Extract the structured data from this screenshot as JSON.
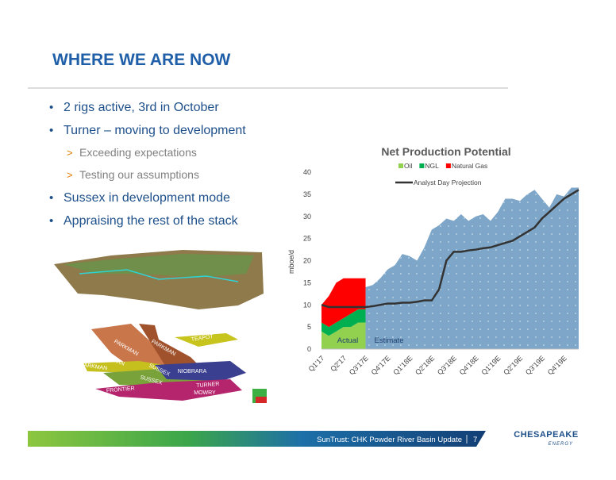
{
  "header": {
    "title": "WHERE WE ARE NOW"
  },
  "bullets": [
    {
      "text": "2 rigs active, 3rd in October"
    },
    {
      "text": "Turner – moving to development",
      "sub": [
        "Exceeding expectations",
        "Testing our assumptions"
      ]
    },
    {
      "text": "Sussex in development mode"
    },
    {
      "text": "Appraising the rest of the stack"
    }
  ],
  "map": {
    "labels": [
      "TEAPOT",
      "PARKMAN",
      "PARKMAN",
      "PARKMAN",
      "PARKMAN",
      "SUSSEX",
      "SUSSEX",
      "NIOBRARA",
      "TURNER",
      "MOWRY",
      "FRONTIER"
    ]
  },
  "chart_data": {
    "type": "area",
    "title": "Net Production Potential",
    "y_label": "mboe/d",
    "categories": [
      "Q1'17",
      null,
      null,
      "Q2'17",
      null,
      null,
      "Q3'17E",
      null,
      null,
      "Q4'17E",
      null,
      null,
      "Q1'18E",
      null,
      null,
      "Q2'18E",
      null,
      null,
      "Q3'18E",
      null,
      null,
      "Q4'18E",
      null,
      null,
      "Q1'19E",
      null,
      null,
      "Q2'19E",
      null,
      null,
      "Q3'19E",
      null,
      null,
      "Q4'19E",
      null,
      null
    ],
    "series": [
      {
        "name": "Oil",
        "color": "#92d050",
        "kind": "area",
        "stack": true,
        "values": [
          4,
          3,
          4,
          5,
          5,
          6,
          6,
          null,
          null,
          null,
          null,
          null,
          null,
          null,
          null,
          null,
          null,
          null,
          null,
          null,
          null,
          null,
          null,
          null,
          null,
          null,
          null,
          null,
          null,
          null,
          null,
          null,
          null,
          null,
          null,
          null
        ]
      },
      {
        "name": "NGL",
        "color": "#00b050",
        "kind": "area",
        "stack": true,
        "values": [
          2,
          2,
          2,
          2,
          3,
          3,
          3,
          null,
          null,
          null,
          null,
          null,
          null,
          null,
          null,
          null,
          null,
          null,
          null,
          null,
          null,
          null,
          null,
          null,
          null,
          null,
          null,
          null,
          null,
          null,
          null,
          null,
          null,
          null,
          null,
          null
        ]
      },
      {
        "name": "Natural Gas",
        "color": "#ff0000",
        "kind": "area",
        "stack": true,
        "values": [
          4,
          7,
          9,
          9,
          8,
          7,
          7,
          null,
          null,
          null,
          null,
          null,
          null,
          null,
          null,
          null,
          null,
          null,
          null,
          null,
          null,
          null,
          null,
          null,
          null,
          null,
          null,
          null,
          null,
          null,
          null,
          null,
          null,
          null,
          null,
          null
        ]
      },
      {
        "color": "#7ea6c8",
        "kind": "area",
        "values": [
          null,
          null,
          null,
          null,
          null,
          null,
          14,
          14.5,
          16,
          18,
          19,
          21.5,
          21,
          20,
          23,
          27,
          28,
          29.5,
          29,
          30.5,
          29,
          30,
          30.5,
          29,
          31,
          34,
          34,
          33.5,
          35,
          36,
          34,
          32,
          35,
          34.5,
          36.5,
          36.5
        ]
      },
      {
        "name": "Analyst Day Projection",
        "color": "#333333",
        "kind": "line",
        "values": [
          10,
          9.5,
          9.5,
          9.5,
          9.5,
          9.5,
          9.5,
          9.7,
          10,
          10.3,
          10.3,
          10.5,
          10.5,
          10.7,
          11,
          11,
          13.5,
          20,
          22,
          22,
          22.3,
          22.5,
          22.8,
          23,
          23.5,
          24,
          24.5,
          25.5,
          26.5,
          27.5,
          29.5,
          31,
          32.5,
          34,
          35,
          36
        ]
      }
    ],
    "annotations": [
      "Actual",
      "Estimate"
    ],
    "ylim": [
      0,
      40
    ],
    "yticks": [
      0,
      5,
      10,
      15,
      20,
      25,
      30,
      35,
      40
    ],
    "grid": false
  },
  "footer": {
    "text": "SunTrust: CHK Powder River Basin Update",
    "page": "7",
    "logo": "CHESAPEAKE",
    "logo_sub": "ENERGY"
  }
}
